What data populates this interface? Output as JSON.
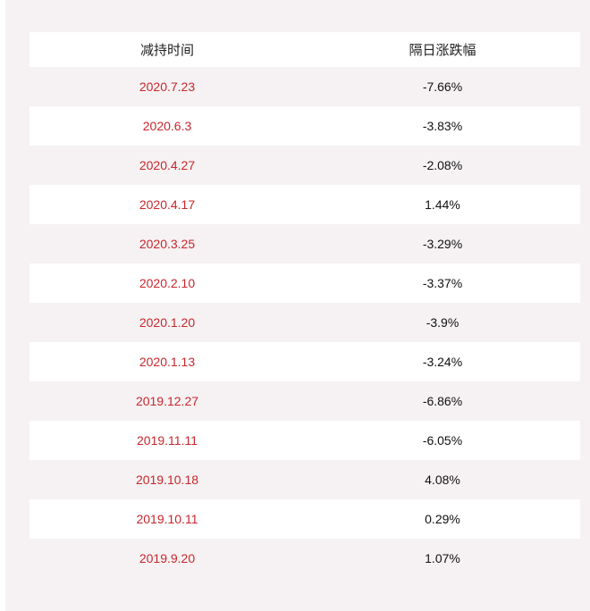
{
  "table": {
    "headers": [
      "减持时间",
      "隔日涨跌幅"
    ],
    "rows": [
      {
        "date": "2020.7.23",
        "change": "-7.66%"
      },
      {
        "date": "2020.6.3",
        "change": "-3.83%"
      },
      {
        "date": "2020.4.27",
        "change": "-2.08%"
      },
      {
        "date": "2020.4.17",
        "change": "1.44%"
      },
      {
        "date": "2020.3.25",
        "change": "-3.29%"
      },
      {
        "date": "2020.2.10",
        "change": "-3.37%"
      },
      {
        "date": "2020.1.20",
        "change": "-3.9%"
      },
      {
        "date": "2020.1.13",
        "change": "-3.24%"
      },
      {
        "date": "2019.12.27",
        "change": "-6.86%"
      },
      {
        "date": "2019.11.11",
        "change": "-6.05%"
      },
      {
        "date": "2019.10.18",
        "change": "4.08%"
      },
      {
        "date": "2019.10.11",
        "change": "0.29%"
      },
      {
        "date": "2019.9.20",
        "change": "1.07%"
      }
    ]
  },
  "colors": {
    "date_text": "#c8262c",
    "value_text": "#111111",
    "stripe": "#f6f2f3",
    "row": "#ffffff"
  }
}
